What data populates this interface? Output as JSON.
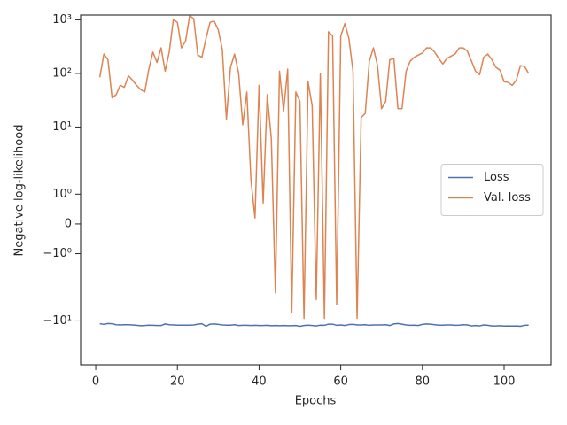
{
  "chart_data": {
    "type": "line",
    "xlabel": "Epochs",
    "ylabel": "Negative log-likelihood",
    "yscale": "symlog",
    "linthresh": 2,
    "xlim": [
      -3.7,
      111.5
    ],
    "xticks": [
      0,
      20,
      40,
      60,
      80,
      100
    ],
    "ylim": [
      -66,
      1230
    ],
    "yticks": [
      {
        "value": 1000,
        "label": "10³"
      },
      {
        "value": 100,
        "label": "10²"
      },
      {
        "value": 10,
        "label": "10¹"
      },
      {
        "value": 1,
        "label": "10⁰"
      },
      0,
      {
        "value": -1,
        "label": "−10⁰"
      },
      {
        "value": -10,
        "label": "−10¹"
      }
    ],
    "legend": "center right",
    "grid": false,
    "x": [
      1,
      2,
      3,
      4,
      5,
      6,
      7,
      8,
      9,
      10,
      11,
      12,
      13,
      14,
      15,
      16,
      17,
      18,
      19,
      20,
      21,
      22,
      23,
      24,
      25,
      26,
      27,
      28,
      29,
      30,
      31,
      32,
      33,
      34,
      35,
      36,
      37,
      38,
      39,
      40,
      41,
      42,
      43,
      44,
      45,
      46,
      47,
      48,
      49,
      50,
      51,
      52,
      53,
      54,
      55,
      56,
      57,
      58,
      59,
      60,
      61,
      62,
      63,
      64,
      65,
      66,
      67,
      68,
      69,
      70,
      71,
      72,
      73,
      74,
      75,
      76,
      77,
      78,
      79,
      80,
      81,
      82,
      83,
      84,
      85,
      86,
      87,
      88,
      89,
      90,
      91,
      92,
      93,
      94,
      95,
      96,
      97,
      98,
      99,
      100,
      101,
      102,
      103,
      104,
      105,
      106
    ],
    "series": [
      {
        "name": "Loss",
        "color": "#4c72b0",
        "values": [
          -11.3,
          -11.6,
          -11.2,
          -11.3,
          -11.8,
          -11.9,
          -11.8,
          -11.8,
          -11.9,
          -12.1,
          -12.3,
          -12.2,
          -12.0,
          -12.1,
          -12.2,
          -12.2,
          -11.4,
          -11.8,
          -11.9,
          -12.0,
          -12.0,
          -12.0,
          -12.0,
          -11.9,
          -11.5,
          -11.3,
          -12.6,
          -11.5,
          -11.4,
          -11.6,
          -11.9,
          -12.0,
          -12.0,
          -11.8,
          -12.2,
          -12.1,
          -12.1,
          -12.2,
          -12.1,
          -12.2,
          -12.2,
          -12.1,
          -12.3,
          -12.2,
          -12.3,
          -12.2,
          -12.3,
          -12.3,
          -12.2,
          -12.6,
          -12.2,
          -12.0,
          -12.2,
          -12.4,
          -12.0,
          -12.1,
          -11.5,
          -11.5,
          -12.1,
          -11.9,
          -12.2,
          -11.7,
          -11.6,
          -11.9,
          -11.9,
          -11.8,
          -12.1,
          -11.9,
          -11.9,
          -11.9,
          -11.8,
          -12.2,
          -11.4,
          -11.2,
          -11.5,
          -11.9,
          -12.1,
          -12.0,
          -12.2,
          -11.6,
          -11.4,
          -11.5,
          -11.8,
          -12.0,
          -12.0,
          -11.9,
          -11.9,
          -12.1,
          -12.0,
          -11.8,
          -11.9,
          -12.4,
          -12.2,
          -12.4,
          -11.9,
          -12.1,
          -12.4,
          -12.4,
          -12.3,
          -12.5,
          -12.4,
          -12.5,
          -12.4,
          -12.6,
          -12.1,
          -12.0
        ]
      },
      {
        "name": "Val. loss",
        "color": "#dd8452",
        "values": [
          85,
          230,
          180,
          35,
          40,
          60,
          55,
          90,
          75,
          60,
          50,
          45,
          120,
          250,
          160,
          300,
          110,
          250,
          1000,
          900,
          300,
          400,
          1200,
          1050,
          220,
          200,
          450,
          900,
          950,
          650,
          280,
          14,
          130,
          230,
          100,
          11,
          45,
          1.5,
          0.2,
          60,
          0.7,
          40,
          6,
          -3,
          110,
          20,
          120,
          -7,
          45,
          30,
          -9,
          70,
          25,
          -4,
          100,
          -9,
          600,
          500,
          -5,
          500,
          850,
          450,
          110,
          -9,
          15,
          18,
          170,
          300,
          140,
          22,
          30,
          180,
          190,
          22,
          22,
          110,
          170,
          200,
          220,
          240,
          300,
          300,
          250,
          190,
          150,
          190,
          210,
          230,
          300,
          300,
          260,
          170,
          110,
          95,
          200,
          230,
          180,
          130,
          115,
          70,
          68,
          60,
          75,
          140,
          135,
          100
        ]
      }
    ]
  }
}
